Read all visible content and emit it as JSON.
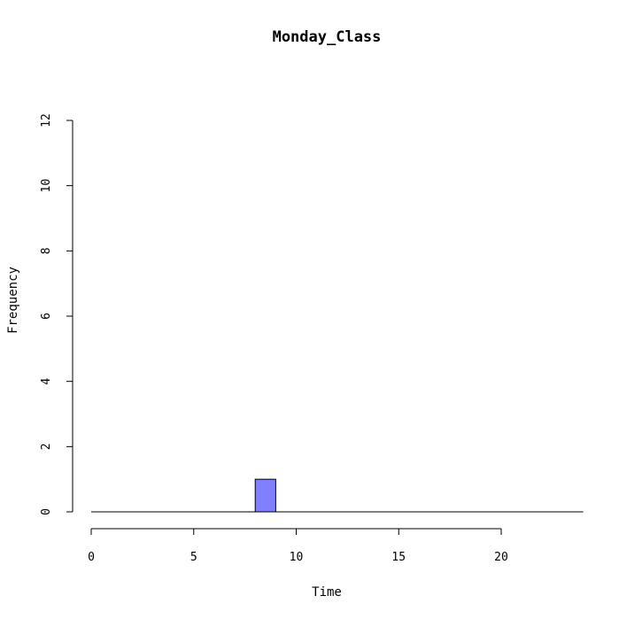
{
  "chart_data": {
    "type": "bar",
    "title": "Monday_Class",
    "xlabel": "Time",
    "ylabel": "Frequency",
    "xlim": [
      0,
      24
    ],
    "ylim": [
      0,
      12
    ],
    "x_ticks": [
      "0",
      "5",
      "10",
      "15",
      "20"
    ],
    "y_ticks": [
      "0",
      "2",
      "4",
      "6",
      "8",
      "10",
      "12"
    ],
    "bins": [
      {
        "start": 0,
        "end": 1,
        "count": 0
      },
      {
        "start": 1,
        "end": 2,
        "count": 0
      },
      {
        "start": 2,
        "end": 3,
        "count": 0
      },
      {
        "start": 3,
        "end": 4,
        "count": 0
      },
      {
        "start": 4,
        "end": 5,
        "count": 0
      },
      {
        "start": 5,
        "end": 6,
        "count": 0
      },
      {
        "start": 6,
        "end": 7,
        "count": 0
      },
      {
        "start": 7,
        "end": 8,
        "count": 0
      },
      {
        "start": 8,
        "end": 9,
        "count": 1
      },
      {
        "start": 9,
        "end": 10,
        "count": 0
      },
      {
        "start": 10,
        "end": 11,
        "count": 0
      },
      {
        "start": 11,
        "end": 12,
        "count": 0
      },
      {
        "start": 12,
        "end": 13,
        "count": 0
      },
      {
        "start": 13,
        "end": 14,
        "count": 0
      },
      {
        "start": 14,
        "end": 15,
        "count": 0
      },
      {
        "start": 15,
        "end": 16,
        "count": 0
      },
      {
        "start": 16,
        "end": 17,
        "count": 0
      },
      {
        "start": 17,
        "end": 18,
        "count": 0
      },
      {
        "start": 18,
        "end": 19,
        "count": 0
      },
      {
        "start": 19,
        "end": 20,
        "count": 0
      },
      {
        "start": 20,
        "end": 21,
        "count": 0
      },
      {
        "start": 21,
        "end": 22,
        "count": 0
      },
      {
        "start": 22,
        "end": 23,
        "count": 0
      },
      {
        "start": 23,
        "end": 24,
        "count": 0
      }
    ],
    "bar_color": "#8080ff",
    "grid": false,
    "legend": "none"
  }
}
